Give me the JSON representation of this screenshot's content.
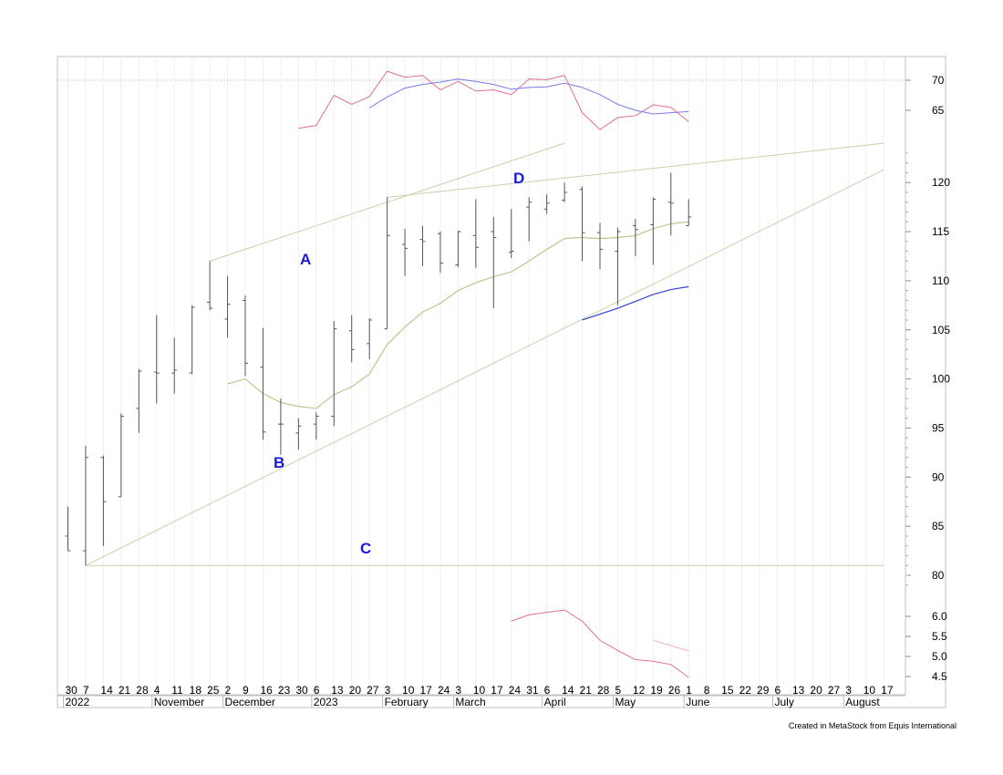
{
  "chart_data": {
    "type": "bar",
    "subtype": "ohlc-weekly",
    "credit": "Created in MetaStock from Equis International",
    "price_axis": {
      "min": 78,
      "max": 124,
      "ticks": [
        "80",
        "85",
        "90",
        "95",
        "100",
        "105",
        "110",
        "115",
        "120"
      ]
    },
    "upper_indicator_axis": {
      "ticks": [
        "65",
        "70"
      ],
      "reference_line": 70
    },
    "lower_indicator_axis": {
      "ticks": [
        "4.5",
        "5.0",
        "5.5",
        "6.0"
      ]
    },
    "x_axis": {
      "week_labels": [
        "30",
        "7",
        "14",
        "21",
        "28",
        "4",
        "11",
        "18",
        "25",
        "2",
        "9",
        "16",
        "23",
        "30",
        "6",
        "13",
        "20",
        "27",
        "3",
        "10",
        "17",
        "24",
        "3",
        "10",
        "17",
        "24",
        "31",
        "6",
        "14",
        "21",
        "28",
        "5",
        "12",
        "19",
        "26",
        "1",
        "8",
        "15",
        "22",
        "29",
        "6",
        "13",
        "20",
        "27",
        "3",
        "10",
        "17"
      ],
      "month_labels": [
        "2022",
        "November",
        "December",
        "2023",
        "February",
        "March",
        "April",
        "May",
        "June",
        "July",
        "August"
      ]
    },
    "markers": [
      "A",
      "B",
      "C",
      "D"
    ],
    "ohlc": [
      {
        "w": 0,
        "o": 84.0,
        "h": 87.0,
        "l": 82.5,
        "c": 82.5
      },
      {
        "w": 1,
        "o": 82.5,
        "h": 93.2,
        "l": 81.0,
        "c": 92.0
      },
      {
        "w": 2,
        "o": 92.0,
        "h": 92.2,
        "l": 83.0,
        "c": 87.5
      },
      {
        "w": 3,
        "o": 88.0,
        "h": 96.5,
        "l": 88.0,
        "c": 96.2
      },
      {
        "w": 4,
        "o": 97.0,
        "h": 101.0,
        "l": 94.5,
        "c": 100.8
      },
      {
        "w": 5,
        "o": 100.7,
        "h": 106.5,
        "l": 97.5,
        "c": 100.6
      },
      {
        "w": 6,
        "o": 100.6,
        "h": 104.2,
        "l": 98.5,
        "c": 100.9
      },
      {
        "w": 7,
        "o": 100.6,
        "h": 107.5,
        "l": 100.5,
        "c": 107.3
      },
      {
        "w": 8,
        "o": 107.8,
        "h": 112.0,
        "l": 107.0,
        "c": 107.2
      },
      {
        "w": 9,
        "o": 106.1,
        "h": 110.5,
        "l": 104.2,
        "c": 107.6
      },
      {
        "w": 10,
        "o": 108.0,
        "h": 108.5,
        "l": 100.3,
        "c": 101.6
      },
      {
        "w": 11,
        "o": 101.2,
        "h": 105.2,
        "l": 93.8,
        "c": 94.6
      },
      {
        "w": 12,
        "o": 95.4,
        "h": 98.0,
        "l": 92.3,
        "c": 95.4
      },
      {
        "w": 13,
        "o": 94.5,
        "h": 96.0,
        "l": 92.8,
        "c": 95.2
      },
      {
        "w": 14,
        "o": 95.4,
        "h": 96.6,
        "l": 93.8,
        "c": 96.2
      },
      {
        "w": 15,
        "o": 96.2,
        "h": 105.9,
        "l": 95.2,
        "c": 105.1
      },
      {
        "w": 16,
        "o": 104.9,
        "h": 106.5,
        "l": 101.7,
        "c": 103.0
      },
      {
        "w": 17,
        "o": 103.6,
        "h": 106.2,
        "l": 102.0,
        "c": 106.0
      },
      {
        "w": 18,
        "o": 105.1,
        "h": 118.5,
        "l": 105.1,
        "c": 114.6
      },
      {
        "w": 19,
        "o": 113.7,
        "h": 115.3,
        "l": 110.5,
        "c": 113.3
      },
      {
        "w": 20,
        "o": 114.2,
        "h": 115.6,
        "l": 111.5,
        "c": 114.0
      },
      {
        "w": 21,
        "o": 114.8,
        "h": 115.0,
        "l": 110.8,
        "c": 111.8
      },
      {
        "w": 22,
        "o": 111.6,
        "h": 115.1,
        "l": 111.4,
        "c": 115.0
      },
      {
        "w": 23,
        "o": 114.6,
        "h": 118.3,
        "l": 111.3,
        "c": 113.4
      },
      {
        "w": 24,
        "o": 115.0,
        "h": 116.5,
        "l": 107.2,
        "c": 114.4
      },
      {
        "w": 25,
        "o": 112.9,
        "h": 117.3,
        "l": 112.3,
        "c": 113.0
      },
      {
        "w": 26,
        "o": 117.5,
        "h": 118.5,
        "l": 114.0,
        "c": 118.0
      },
      {
        "w": 27,
        "o": 117.3,
        "h": 118.8,
        "l": 116.8,
        "c": 117.9
      },
      {
        "w": 28,
        "o": 118.2,
        "h": 120.0,
        "l": 118.0,
        "c": 119.0
      },
      {
        "w": 29,
        "o": 119.3,
        "h": 119.6,
        "l": 112.0,
        "c": 114.9
      },
      {
        "w": 30,
        "o": 114.9,
        "h": 115.9,
        "l": 111.2,
        "c": 113.2
      },
      {
        "w": 31,
        "o": 113.0,
        "h": 115.4,
        "l": 107.5,
        "c": 115.0
      },
      {
        "w": 32,
        "o": 115.6,
        "h": 116.3,
        "l": 112.5,
        "c": 115.2
      },
      {
        "w": 33,
        "o": 115.7,
        "h": 118.5,
        "l": 111.6,
        "c": 118.3
      },
      {
        "w": 34,
        "o": 118.0,
        "h": 121.0,
        "l": 114.6,
        "c": 117.9
      },
      {
        "w": 35,
        "o": 115.6,
        "h": 118.3,
        "l": 115.6,
        "c": 116.5
      }
    ],
    "moving_average": {
      "color": "#b7c98c",
      "points": [
        [
          9,
          99.5
        ],
        [
          10,
          100.0
        ],
        [
          11,
          98.5
        ],
        [
          12,
          97.6
        ],
        [
          13,
          97.2
        ],
        [
          14,
          97.0
        ],
        [
          15,
          98.4
        ],
        [
          16,
          99.2
        ],
        [
          17,
          100.5
        ],
        [
          18,
          103.5
        ],
        [
          19,
          105.3
        ],
        [
          20,
          106.8
        ],
        [
          21,
          107.7
        ],
        [
          22,
          109.0
        ],
        [
          23,
          109.8
        ],
        [
          24,
          110.4
        ],
        [
          25,
          110.9
        ],
        [
          26,
          112.0
        ],
        [
          27,
          113.2
        ],
        [
          28,
          114.3
        ],
        [
          29,
          114.4
        ],
        [
          30,
          114.3
        ],
        [
          31,
          114.4
        ],
        [
          32,
          114.6
        ],
        [
          33,
          115.3
        ],
        [
          34,
          115.8
        ],
        [
          35,
          116.0
        ]
      ]
    },
    "blue_price_line": {
      "color": "#3344cc",
      "points": [
        [
          29,
          106.0
        ],
        [
          30,
          106.6
        ],
        [
          31,
          107.2
        ],
        [
          32,
          107.9
        ],
        [
          33,
          108.6
        ],
        [
          34,
          109.1
        ],
        [
          35,
          109.4
        ]
      ]
    },
    "trend_lines": {
      "color": "#c8d2a8",
      "lines": [
        {
          "points": [
            [
              1,
              81.0
            ],
            [
              46,
              121.3
            ]
          ],
          "label": "lower trend line"
        },
        {
          "points": [
            [
              1,
              81.0
            ],
            [
              46,
              81.0
            ]
          ],
          "label": "base line"
        },
        {
          "points": [
            [
              8,
              112.0
            ],
            [
              28,
              124.0
            ]
          ],
          "label": "upper A line"
        },
        {
          "points": [
            [
              18,
              118.5
            ],
            [
              46,
              124.0
            ]
          ],
          "label": "upper D line"
        }
      ]
    },
    "upper_indicator": {
      "series": [
        {
          "color": "#e0708a",
          "points": [
            [
              13,
              62.0
            ],
            [
              14,
              62.5
            ],
            [
              15,
              67.5
            ],
            [
              16,
              66.0
            ],
            [
              17,
              67.3
            ],
            [
              18,
              71.5
            ],
            [
              19,
              70.5
            ],
            [
              20,
              70.8
            ],
            [
              21,
              68.4
            ],
            [
              22,
              69.8
            ],
            [
              23,
              68.2
            ],
            [
              24,
              68.4
            ],
            [
              25,
              67.6
            ],
            [
              26,
              70.2
            ],
            [
              27,
              70.1
            ],
            [
              28,
              70.8
            ],
            [
              29,
              64.6
            ],
            [
              30,
              61.8
            ],
            [
              31,
              63.8
            ],
            [
              32,
              64.1
            ],
            [
              33,
              65.9
            ],
            [
              34,
              65.5
            ],
            [
              35,
              63.1
            ]
          ]
        },
        {
          "color": "#7a7ae8",
          "points": [
            [
              17,
              65.4
            ],
            [
              18,
              67.2
            ],
            [
              19,
              68.7
            ],
            [
              20,
              69.3
            ],
            [
              21,
              69.7
            ],
            [
              22,
              70.2
            ],
            [
              23,
              69.8
            ],
            [
              24,
              69.3
            ],
            [
              25,
              68.5
            ],
            [
              26,
              68.8
            ],
            [
              27,
              68.9
            ],
            [
              28,
              69.5
            ],
            [
              29,
              68.8
            ],
            [
              30,
              67.6
            ],
            [
              31,
              66.0
            ],
            [
              32,
              65.0
            ],
            [
              33,
              64.4
            ],
            [
              34,
              64.6
            ],
            [
              35,
              64.8
            ]
          ]
        }
      ]
    },
    "lower_indicator": {
      "series": [
        {
          "color": "#e0708a",
          "points": [
            [
              25,
              5.88
            ],
            [
              26,
              6.04
            ],
            [
              27,
              6.1
            ],
            [
              28,
              6.16
            ],
            [
              29,
              5.88
            ],
            [
              30,
              5.4
            ],
            [
              31,
              5.15
            ],
            [
              32,
              4.92
            ],
            [
              33,
              4.88
            ],
            [
              34,
              4.8
            ],
            [
              35,
              4.48
            ]
          ]
        },
        {
          "color": "#f0b0c0",
          "points": [
            [
              33,
              5.4
            ],
            [
              34,
              5.27
            ],
            [
              35,
              5.14
            ]
          ]
        }
      ]
    }
  }
}
